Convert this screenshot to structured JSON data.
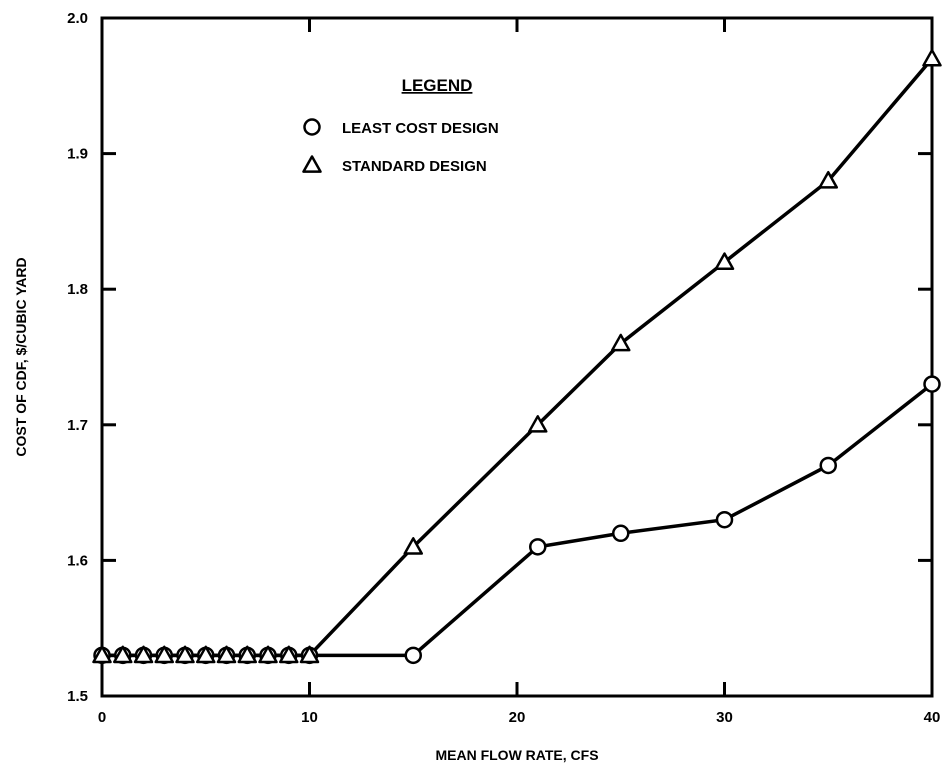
{
  "chart_data": {
    "type": "line",
    "title": "",
    "xlabel": "MEAN FLOW RATE, CFS",
    "ylabel": "COST OF CDF, $/CUBIC YARD",
    "xlim": [
      0,
      40
    ],
    "ylim": [
      1.5,
      2.0
    ],
    "xticks": [
      0,
      10,
      20,
      30,
      40
    ],
    "xtick_labels": [
      "0",
      "10",
      "20",
      "30",
      "40"
    ],
    "yticks": [
      1.5,
      1.6,
      1.7,
      1.8,
      1.9,
      2.0
    ],
    "ytick_labels": [
      "1.5",
      "1.6",
      "1.7",
      "1.8",
      "1.9",
      "2.0"
    ],
    "grid": false,
    "legend": {
      "title": "LEGEND",
      "placement": "top-center",
      "entries": [
        {
          "label": "LEAST COST DESIGN",
          "marker": "circle"
        },
        {
          "label": "STANDARD DESIGN",
          "marker": "triangle"
        }
      ]
    },
    "series": [
      {
        "name": "LEAST COST DESIGN",
        "marker": "circle",
        "color": "#000000",
        "x": [
          0,
          1,
          2,
          3,
          4,
          5,
          6,
          7,
          8,
          9,
          10,
          15,
          21,
          25,
          30,
          35,
          40
        ],
        "y": [
          1.53,
          1.53,
          1.53,
          1.53,
          1.53,
          1.53,
          1.53,
          1.53,
          1.53,
          1.53,
          1.53,
          1.53,
          1.61,
          1.62,
          1.63,
          1.67,
          1.73
        ]
      },
      {
        "name": "STANDARD DESIGN",
        "marker": "triangle",
        "color": "#000000",
        "x": [
          0,
          1,
          2,
          3,
          4,
          5,
          6,
          7,
          8,
          9,
          10,
          15,
          21,
          25,
          30,
          35,
          40
        ],
        "y": [
          1.53,
          1.53,
          1.53,
          1.53,
          1.53,
          1.53,
          1.53,
          1.53,
          1.53,
          1.53,
          1.53,
          1.61,
          1.7,
          1.76,
          1.82,
          1.88,
          1.97
        ]
      }
    ]
  }
}
